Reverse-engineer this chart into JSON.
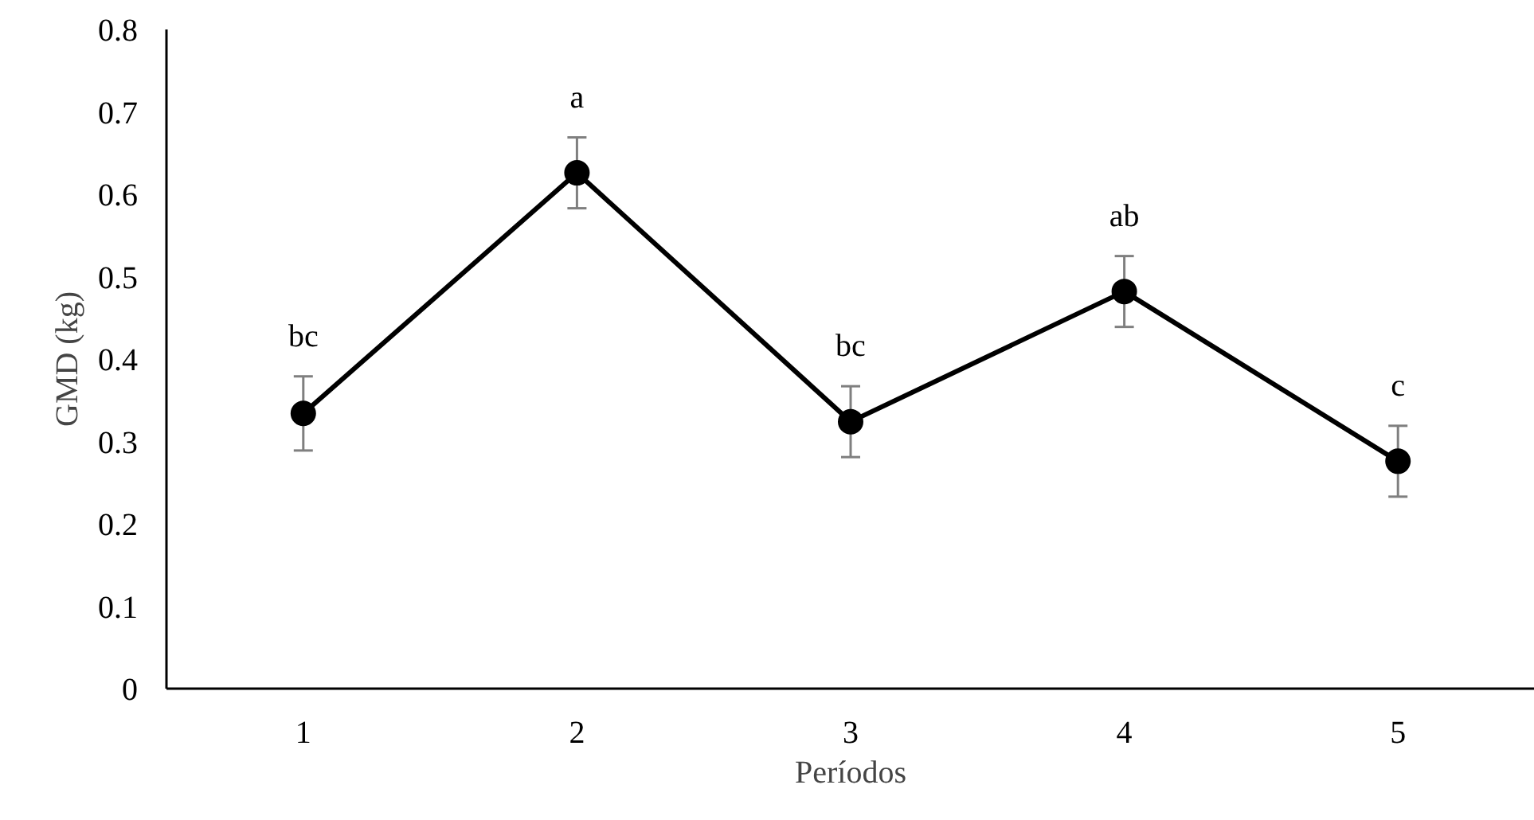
{
  "chart_data": {
    "type": "line",
    "xlabel": "Períodos",
    "ylabel": "GMD (kg)",
    "categories": [
      "1",
      "2",
      "3",
      "4",
      "5"
    ],
    "series": [
      {
        "color": "#000000",
        "values": [
          0.334,
          0.626,
          0.324,
          0.482,
          0.276
        ],
        "errors": [
          0.045,
          0.043,
          0.043,
          0.043,
          0.043
        ]
      }
    ],
    "ylim": [
      0,
      0.8
    ],
    "yticks": [
      0,
      0.1,
      0.2,
      0.3,
      0.4,
      0.5,
      0.6,
      0.7,
      0.8
    ],
    "grid": false,
    "marker": "circle",
    "line_style": "solid",
    "annotations": [
      "bc",
      "a",
      "bc",
      "ab",
      "c"
    ]
  }
}
